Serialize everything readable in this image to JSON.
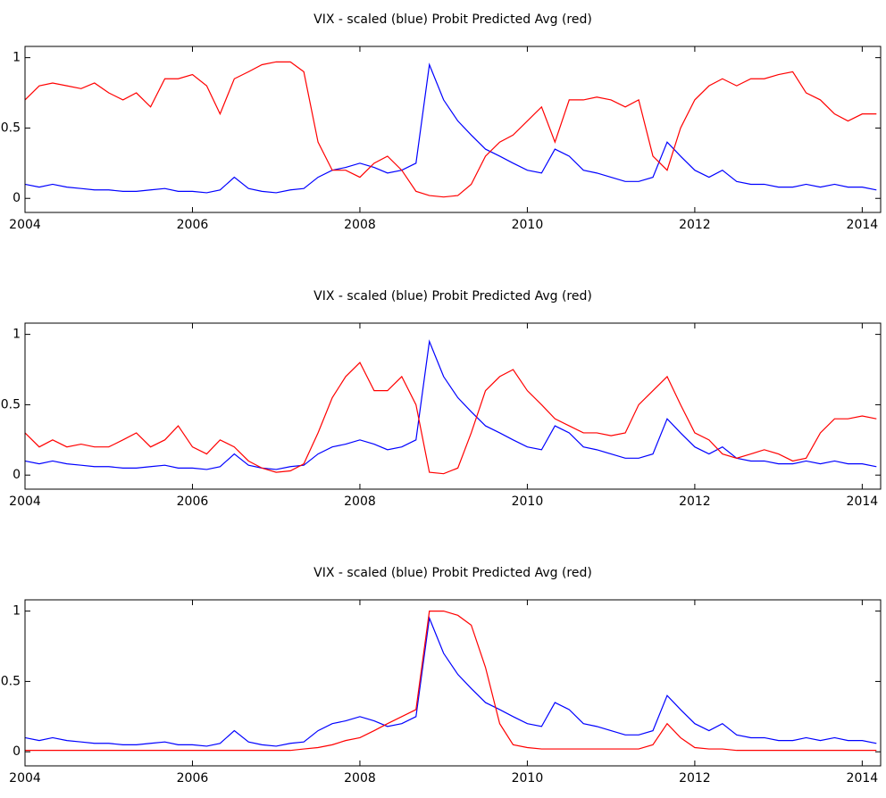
{
  "chart_data": [
    {
      "type": "line",
      "title": "VIX - scaled (blue) Probit Predicted Avg (red)",
      "x": [
        2004,
        2004.17,
        2004.33,
        2004.5,
        2004.67,
        2004.83,
        2005,
        2005.17,
        2005.33,
        2005.5,
        2005.67,
        2005.83,
        2006,
        2006.17,
        2006.33,
        2006.5,
        2006.67,
        2006.83,
        2007,
        2007.17,
        2007.33,
        2007.5,
        2007.67,
        2007.83,
        2008,
        2008.17,
        2008.33,
        2008.5,
        2008.67,
        2008.83,
        2009,
        2009.17,
        2009.33,
        2009.5,
        2009.67,
        2009.83,
        2010,
        2010.17,
        2010.33,
        2010.5,
        2010.67,
        2010.83,
        2011,
        2011.17,
        2011.33,
        2011.5,
        2011.67,
        2011.83,
        2012,
        2012.17,
        2012.33,
        2012.5,
        2012.67,
        2012.83,
        2013,
        2013.17,
        2013.33,
        2013.5,
        2013.67,
        2013.83,
        2014,
        2014.17
      ],
      "series": [
        {
          "color": "#0000ff",
          "values": [
            0.1,
            0.08,
            0.1,
            0.08,
            0.07,
            0.06,
            0.06,
            0.05,
            0.05,
            0.06,
            0.07,
            0.05,
            0.05,
            0.04,
            0.06,
            0.15,
            0.07,
            0.05,
            0.04,
            0.06,
            0.07,
            0.15,
            0.2,
            0.22,
            0.25,
            0.22,
            0.18,
            0.2,
            0.25,
            0.95,
            0.7,
            0.55,
            0.45,
            0.35,
            0.3,
            0.25,
            0.2,
            0.18,
            0.35,
            0.3,
            0.2,
            0.18,
            0.15,
            0.12,
            0.12,
            0.15,
            0.4,
            0.3,
            0.2,
            0.15,
            0.2,
            0.12,
            0.1,
            0.1,
            0.08,
            0.08,
            0.1,
            0.08,
            0.1,
            0.08,
            0.08,
            0.06
          ]
        },
        {
          "color": "#ff0000",
          "values": [
            0.7,
            0.8,
            0.82,
            0.8,
            0.78,
            0.82,
            0.75,
            0.7,
            0.75,
            0.65,
            0.85,
            0.85,
            0.88,
            0.8,
            0.6,
            0.85,
            0.9,
            0.95,
            0.97,
            0.97,
            0.9,
            0.4,
            0.2,
            0.2,
            0.15,
            0.25,
            0.3,
            0.2,
            0.05,
            0.02,
            0.01,
            0.02,
            0.1,
            0.3,
            0.4,
            0.45,
            0.55,
            0.65,
            0.4,
            0.7,
            0.7,
            0.72,
            0.7,
            0.65,
            0.7,
            0.3,
            0.2,
            0.5,
            0.7,
            0.8,
            0.85,
            0.8,
            0.85,
            0.85,
            0.88,
            0.9,
            0.75,
            0.7,
            0.6,
            0.55,
            0.6,
            0.6
          ]
        }
      ],
      "xlim": [
        2004,
        2014.22
      ],
      "xticks": [
        2004,
        2006,
        2008,
        2010,
        2012,
        2014
      ],
      "ylim": [
        -0.1,
        1.08
      ],
      "yticks": [
        0,
        0.5,
        1
      ]
    },
    {
      "type": "line",
      "title": "VIX - scaled (blue) Probit Predicted Avg (red)",
      "x": [
        2004,
        2004.17,
        2004.33,
        2004.5,
        2004.67,
        2004.83,
        2005,
        2005.17,
        2005.33,
        2005.5,
        2005.67,
        2005.83,
        2006,
        2006.17,
        2006.33,
        2006.5,
        2006.67,
        2006.83,
        2007,
        2007.17,
        2007.33,
        2007.5,
        2007.67,
        2007.83,
        2008,
        2008.17,
        2008.33,
        2008.5,
        2008.67,
        2008.83,
        2009,
        2009.17,
        2009.33,
        2009.5,
        2009.67,
        2009.83,
        2010,
        2010.17,
        2010.33,
        2010.5,
        2010.67,
        2010.83,
        2011,
        2011.17,
        2011.33,
        2011.5,
        2011.67,
        2011.83,
        2012,
        2012.17,
        2012.33,
        2012.5,
        2012.67,
        2012.83,
        2013,
        2013.17,
        2013.33,
        2013.5,
        2013.67,
        2013.83,
        2014,
        2014.17
      ],
      "series": [
        {
          "color": "#0000ff",
          "values": [
            0.1,
            0.08,
            0.1,
            0.08,
            0.07,
            0.06,
            0.06,
            0.05,
            0.05,
            0.06,
            0.07,
            0.05,
            0.05,
            0.04,
            0.06,
            0.15,
            0.07,
            0.05,
            0.04,
            0.06,
            0.07,
            0.15,
            0.2,
            0.22,
            0.25,
            0.22,
            0.18,
            0.2,
            0.25,
            0.95,
            0.7,
            0.55,
            0.45,
            0.35,
            0.3,
            0.25,
            0.2,
            0.18,
            0.35,
            0.3,
            0.2,
            0.18,
            0.15,
            0.12,
            0.12,
            0.15,
            0.4,
            0.3,
            0.2,
            0.15,
            0.2,
            0.12,
            0.1,
            0.1,
            0.08,
            0.08,
            0.1,
            0.08,
            0.1,
            0.08,
            0.08,
            0.06
          ]
        },
        {
          "color": "#ff0000",
          "values": [
            0.3,
            0.2,
            0.25,
            0.2,
            0.22,
            0.2,
            0.2,
            0.25,
            0.3,
            0.2,
            0.25,
            0.35,
            0.2,
            0.15,
            0.25,
            0.2,
            0.1,
            0.05,
            0.02,
            0.03,
            0.08,
            0.3,
            0.55,
            0.7,
            0.8,
            0.6,
            0.6,
            0.7,
            0.5,
            0.02,
            0.01,
            0.05,
            0.3,
            0.6,
            0.7,
            0.75,
            0.6,
            0.5,
            0.4,
            0.35,
            0.3,
            0.3,
            0.28,
            0.3,
            0.5,
            0.6,
            0.7,
            0.5,
            0.3,
            0.25,
            0.15,
            0.12,
            0.15,
            0.18,
            0.15,
            0.1,
            0.12,
            0.3,
            0.4,
            0.4,
            0.42,
            0.4
          ]
        }
      ],
      "xlim": [
        2004,
        2014.22
      ],
      "xticks": [
        2004,
        2006,
        2008,
        2010,
        2012,
        2014
      ],
      "ylim": [
        -0.1,
        1.08
      ],
      "yticks": [
        0,
        0.5,
        1
      ]
    },
    {
      "type": "line",
      "title": "VIX - scaled (blue) Probit Predicted Avg (red)",
      "x": [
        2004,
        2004.17,
        2004.33,
        2004.5,
        2004.67,
        2004.83,
        2005,
        2005.17,
        2005.33,
        2005.5,
        2005.67,
        2005.83,
        2006,
        2006.17,
        2006.33,
        2006.5,
        2006.67,
        2006.83,
        2007,
        2007.17,
        2007.33,
        2007.5,
        2007.67,
        2007.83,
        2008,
        2008.17,
        2008.33,
        2008.5,
        2008.67,
        2008.83,
        2009,
        2009.17,
        2009.33,
        2009.5,
        2009.67,
        2009.83,
        2010,
        2010.17,
        2010.33,
        2010.5,
        2010.67,
        2010.83,
        2011,
        2011.17,
        2011.33,
        2011.5,
        2011.67,
        2011.83,
        2012,
        2012.17,
        2012.33,
        2012.5,
        2012.67,
        2012.83,
        2013,
        2013.17,
        2013.33,
        2013.5,
        2013.67,
        2013.83,
        2014,
        2014.17
      ],
      "series": [
        {
          "color": "#0000ff",
          "values": [
            0.1,
            0.08,
            0.1,
            0.08,
            0.07,
            0.06,
            0.06,
            0.05,
            0.05,
            0.06,
            0.07,
            0.05,
            0.05,
            0.04,
            0.06,
            0.15,
            0.07,
            0.05,
            0.04,
            0.06,
            0.07,
            0.15,
            0.2,
            0.22,
            0.25,
            0.22,
            0.18,
            0.2,
            0.25,
            0.95,
            0.7,
            0.55,
            0.45,
            0.35,
            0.3,
            0.25,
            0.2,
            0.18,
            0.35,
            0.3,
            0.2,
            0.18,
            0.15,
            0.12,
            0.12,
            0.15,
            0.4,
            0.3,
            0.2,
            0.15,
            0.2,
            0.12,
            0.1,
            0.1,
            0.08,
            0.08,
            0.1,
            0.08,
            0.1,
            0.08,
            0.08,
            0.06
          ]
        },
        {
          "color": "#ff0000",
          "values": [
            0.01,
            0.01,
            0.01,
            0.01,
            0.01,
            0.01,
            0.01,
            0.01,
            0.01,
            0.01,
            0.01,
            0.01,
            0.01,
            0.01,
            0.01,
            0.01,
            0.01,
            0.01,
            0.01,
            0.01,
            0.02,
            0.03,
            0.05,
            0.08,
            0.1,
            0.15,
            0.2,
            0.25,
            0.3,
            1,
            1,
            0.97,
            0.9,
            0.6,
            0.2,
            0.05,
            0.03,
            0.02,
            0.02,
            0.02,
            0.02,
            0.02,
            0.02,
            0.02,
            0.02,
            0.05,
            0.2,
            0.1,
            0.03,
            0.02,
            0.02,
            0.01,
            0.01,
            0.01,
            0.01,
            0.01,
            0.01,
            0.01,
            0.01,
            0.01,
            0.01,
            0.01
          ]
        }
      ],
      "xlim": [
        2004,
        2014.22
      ],
      "xticks": [
        2004,
        2006,
        2008,
        2010,
        2012,
        2014
      ],
      "ylim": [
        -0.1,
        1.08
      ],
      "yticks": [
        0,
        0.5,
        1
      ]
    }
  ]
}
